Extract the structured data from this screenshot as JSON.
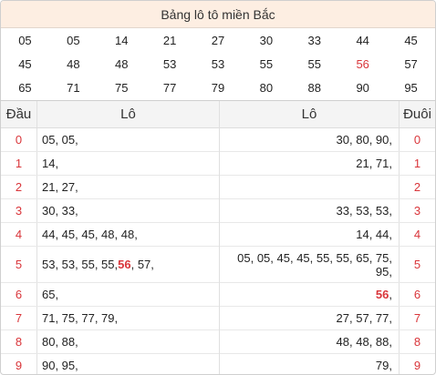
{
  "title": "Bảng lô tô miền Bắc",
  "numbers": [
    [
      "05",
      "05",
      "14",
      "21",
      "27",
      "30",
      "33",
      "44",
      "45"
    ],
    [
      "45",
      "48",
      "48",
      "53",
      "53",
      "55",
      "55",
      "56",
      "57"
    ],
    [
      "65",
      "71",
      "75",
      "77",
      "79",
      "80",
      "88",
      "90",
      "95"
    ]
  ],
  "highlight_number": "56",
  "colors": {
    "accent": "#d9353a",
    "title_bg": "#fdeee2",
    "header_bg": "#f4f4f4"
  },
  "left_table": {
    "head_label": "Đầu",
    "lo_label": "Lô",
    "rows": [
      {
        "digit": "0",
        "before": "05, 05,",
        "hot": "",
        "after": ""
      },
      {
        "digit": "1",
        "before": "14,",
        "hot": "",
        "after": ""
      },
      {
        "digit": "2",
        "before": "21, 27,",
        "hot": "",
        "after": ""
      },
      {
        "digit": "3",
        "before": "30, 33,",
        "hot": "",
        "after": ""
      },
      {
        "digit": "4",
        "before": "44, 45, 45, 48, 48,",
        "hot": "",
        "after": ""
      },
      {
        "digit": "5",
        "before": "53, 53, 55, 55, ",
        "hot": "56",
        "after": ", 57,"
      },
      {
        "digit": "6",
        "before": "65,",
        "hot": "",
        "after": ""
      },
      {
        "digit": "7",
        "before": "71, 75, 77, 79,",
        "hot": "",
        "after": ""
      },
      {
        "digit": "8",
        "before": "80, 88,",
        "hot": "",
        "after": ""
      },
      {
        "digit": "9",
        "before": "90, 95,",
        "hot": "",
        "after": ""
      }
    ]
  },
  "right_table": {
    "lo_label": "Lô",
    "tail_label": "Đuôi",
    "rows": [
      {
        "digit": "0",
        "before": "30, 80, 90,",
        "hot": "",
        "after": ""
      },
      {
        "digit": "1",
        "before": "21, 71,",
        "hot": "",
        "after": ""
      },
      {
        "digit": "2",
        "before": "",
        "hot": "",
        "after": ""
      },
      {
        "digit": "3",
        "before": "33, 53, 53,",
        "hot": "",
        "after": ""
      },
      {
        "digit": "4",
        "before": "14, 44,",
        "hot": "",
        "after": ""
      },
      {
        "digit": "5",
        "before": "05, 05, 45, 45, 55, 55, 65, 75, 95,",
        "hot": "",
        "after": ""
      },
      {
        "digit": "6",
        "before": "",
        "hot": "56",
        "after": ","
      },
      {
        "digit": "7",
        "before": "27, 57, 77,",
        "hot": "",
        "after": ""
      },
      {
        "digit": "8",
        "before": "48, 48, 88,",
        "hot": "",
        "after": ""
      },
      {
        "digit": "9",
        "before": "79,",
        "hot": "",
        "after": ""
      }
    ]
  }
}
